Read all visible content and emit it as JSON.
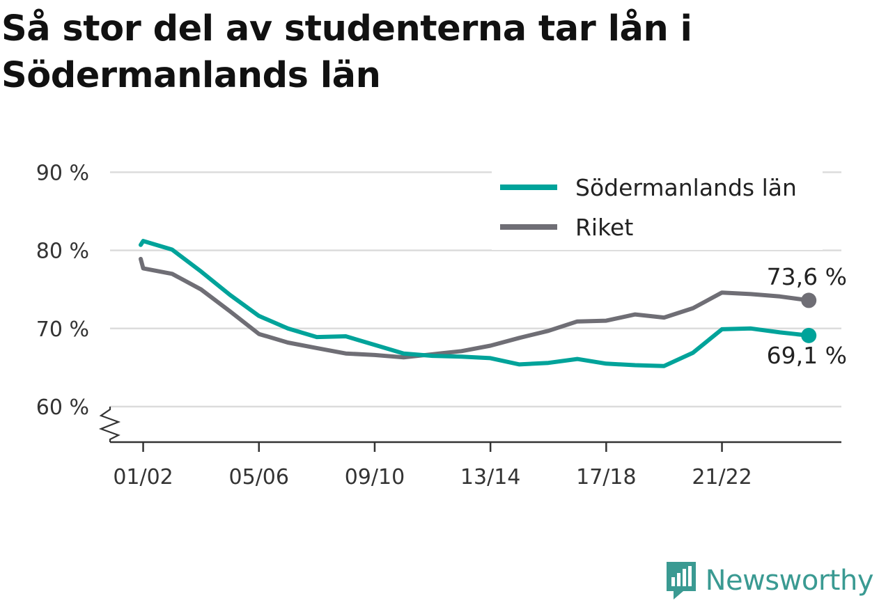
{
  "title": "Så stor del av studenterna tar lån i Södermanlands län",
  "brand": {
    "name": "Newsworthy",
    "icon": "newsworthy-logo-icon",
    "color": "#3a9a92"
  },
  "chart_data": {
    "type": "line",
    "title": "Så stor del av studenterna tar lån i Södermanlands län",
    "xlabel": "",
    "ylabel": "",
    "ylim": [
      55,
      90
    ],
    "y_ticks": [
      60,
      70,
      80,
      90
    ],
    "y_tick_labels": [
      "60 %",
      "70 %",
      "80 %",
      "90 %"
    ],
    "y_axis_break": true,
    "grid": true,
    "legend_position": "top-right",
    "x": [
      "00/01",
      "01/02",
      "02/03",
      "03/04",
      "04/05",
      "05/06",
      "06/07",
      "07/08",
      "08/09",
      "09/10",
      "10/11",
      "11/12",
      "12/13",
      "13/14",
      "14/15",
      "15/16",
      "16/17",
      "17/18",
      "18/19",
      "19/20",
      "20/21",
      "21/22",
      "22/23",
      "23/24",
      "24/25"
    ],
    "x_tick_labels": [
      "01/02",
      "05/06",
      "09/10",
      "13/14",
      "17/18",
      "21/22"
    ],
    "series": [
      {
        "name": "Södermanlands län",
        "color": "#00a39a",
        "values": [
          80.7,
          81.2,
          80.1,
          77.3,
          74.3,
          71.6,
          70.0,
          68.9,
          69.0,
          67.9,
          66.8,
          66.5,
          66.4,
          66.2,
          65.4,
          65.6,
          66.1,
          65.5,
          65.3,
          65.2,
          66.9,
          69.9,
          70.0,
          69.5,
          69.1
        ],
        "end_label": "69,1 %"
      },
      {
        "name": "Riket",
        "color": "#6f6e75",
        "values": [
          78.9,
          77.7,
          77.0,
          75.0,
          72.2,
          69.3,
          68.2,
          67.5,
          66.8,
          66.6,
          66.3,
          66.7,
          67.1,
          67.8,
          68.8,
          69.7,
          70.9,
          71.0,
          71.8,
          71.4,
          72.6,
          74.6,
          74.4,
          74.1,
          73.6
        ],
        "end_label": "73,6 %"
      }
    ]
  }
}
